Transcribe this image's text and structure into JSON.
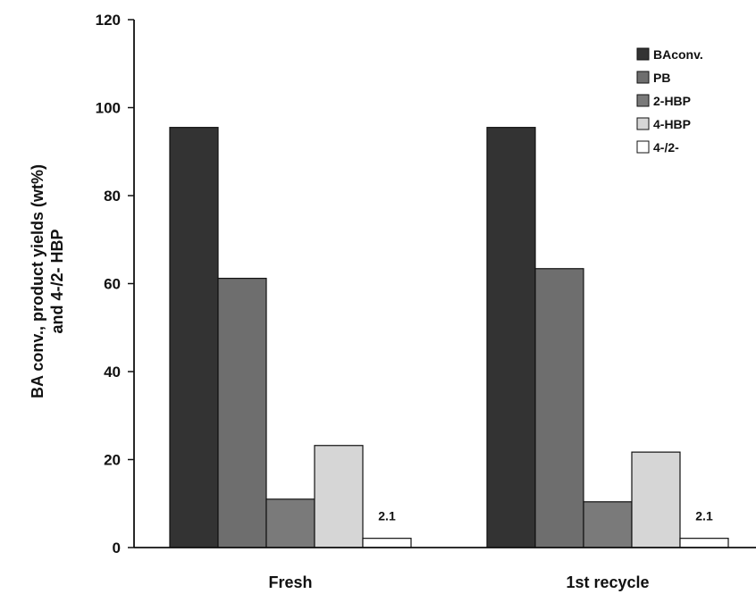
{
  "chart_data": {
    "type": "bar",
    "categories": [
      "Fresh",
      "1st recycle"
    ],
    "series": [
      {
        "name": "BAconv.",
        "color": "#333333",
        "values": [
          95.5,
          95.5
        ]
      },
      {
        "name": "PB",
        "color": "#6e6e6e",
        "values": [
          61.2,
          63.4
        ]
      },
      {
        "name": "2-HBP",
        "color": "#7a7a7a",
        "values": [
          11.0,
          10.4
        ]
      },
      {
        "name": "4-HBP",
        "color": "#d6d6d6",
        "values": [
          23.2,
          21.7
        ]
      },
      {
        "name": "4-/2-",
        "color": "#ffffff",
        "values": [
          2.1,
          2.1
        ]
      }
    ],
    "data_labels": [
      {
        "series": "4-/2-",
        "category": "Fresh",
        "text": "2.1"
      },
      {
        "series": "4-/2-",
        "category": "1st recycle",
        "text": "2.1"
      }
    ],
    "title": "",
    "xlabel": "",
    "ylabel_lines": [
      "BA conv., product yields (wt%)",
      "and 4-/2- HBP"
    ],
    "ylim": [
      0,
      120
    ],
    "yticks": [
      0,
      20,
      40,
      60,
      80,
      100,
      120
    ],
    "grid": false,
    "legend_position": "top-right"
  }
}
